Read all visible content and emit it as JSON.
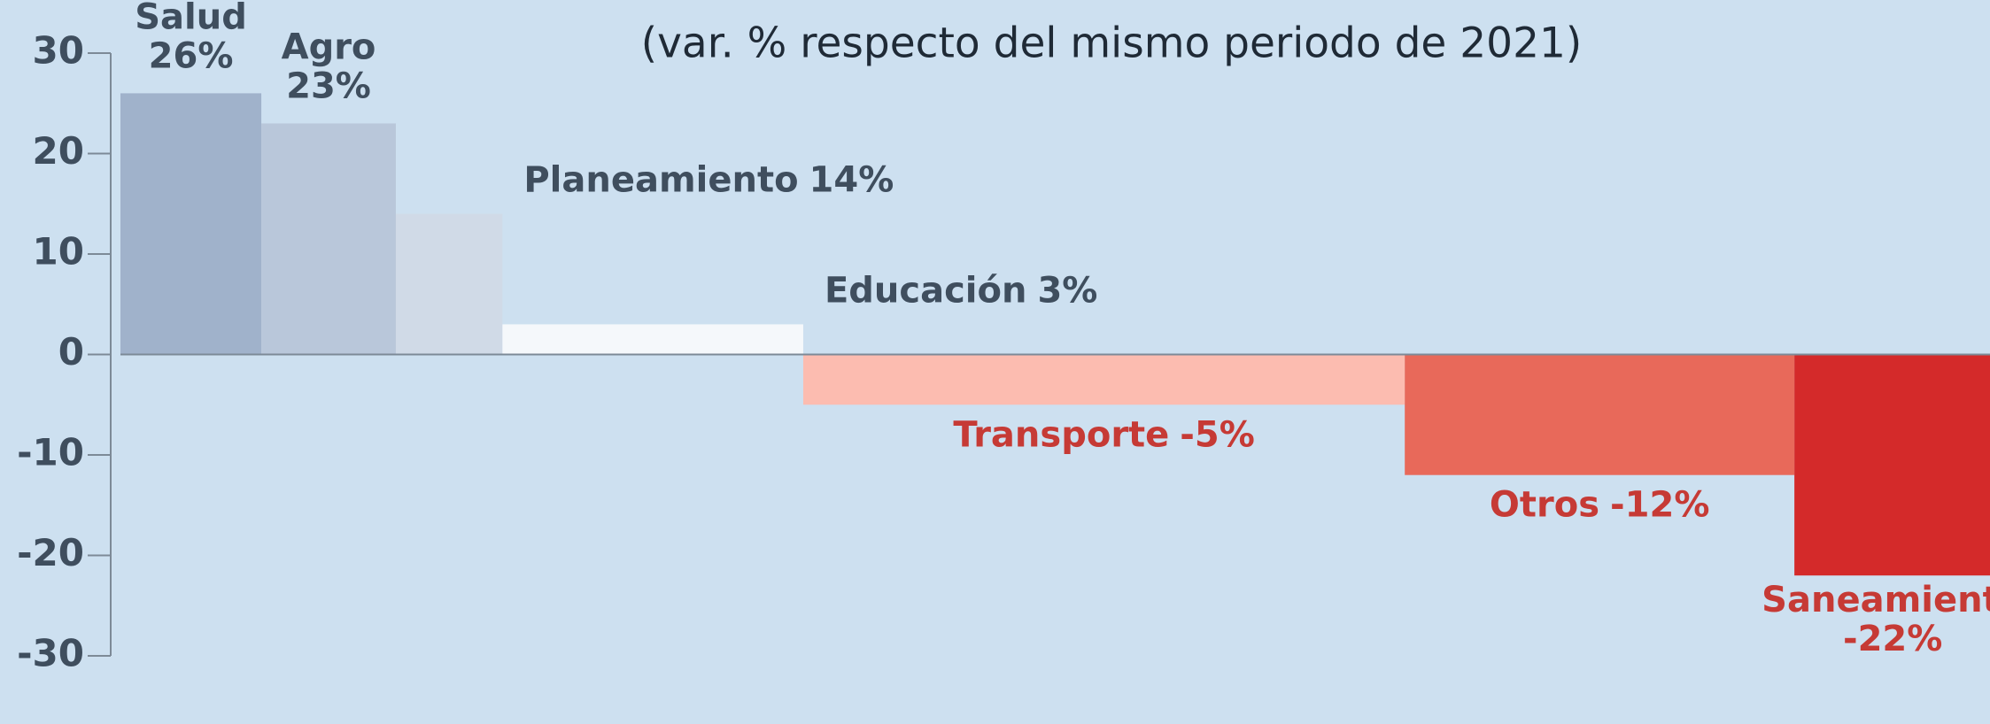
{
  "chart_data": {
    "type": "bar",
    "title": "(var. % respecto del mismo periodo de 2021)",
    "categories": [
      "Salud",
      "Agro",
      "Planeamiento",
      "Educación",
      "Transporte",
      "Otros",
      "Saneamiento"
    ],
    "values": [
      26,
      23,
      14,
      3,
      -5,
      -12,
      -22
    ],
    "value_labels": [
      "26%",
      "23%",
      "14%",
      "3%",
      "-5%",
      "-12%",
      "-22%"
    ],
    "widths": [
      111,
      106,
      84,
      237,
      474,
      307,
      155
    ],
    "colors": [
      "#a0b2cb",
      "#b9c7da",
      "#d0dae7",
      "#f5f8fb",
      "#fcbcb0",
      "#e8695a",
      "#d42a2a"
    ],
    "ylim": [
      -30,
      30
    ],
    "yticks": [
      30,
      20,
      10,
      0,
      -10,
      -20,
      -30
    ]
  }
}
